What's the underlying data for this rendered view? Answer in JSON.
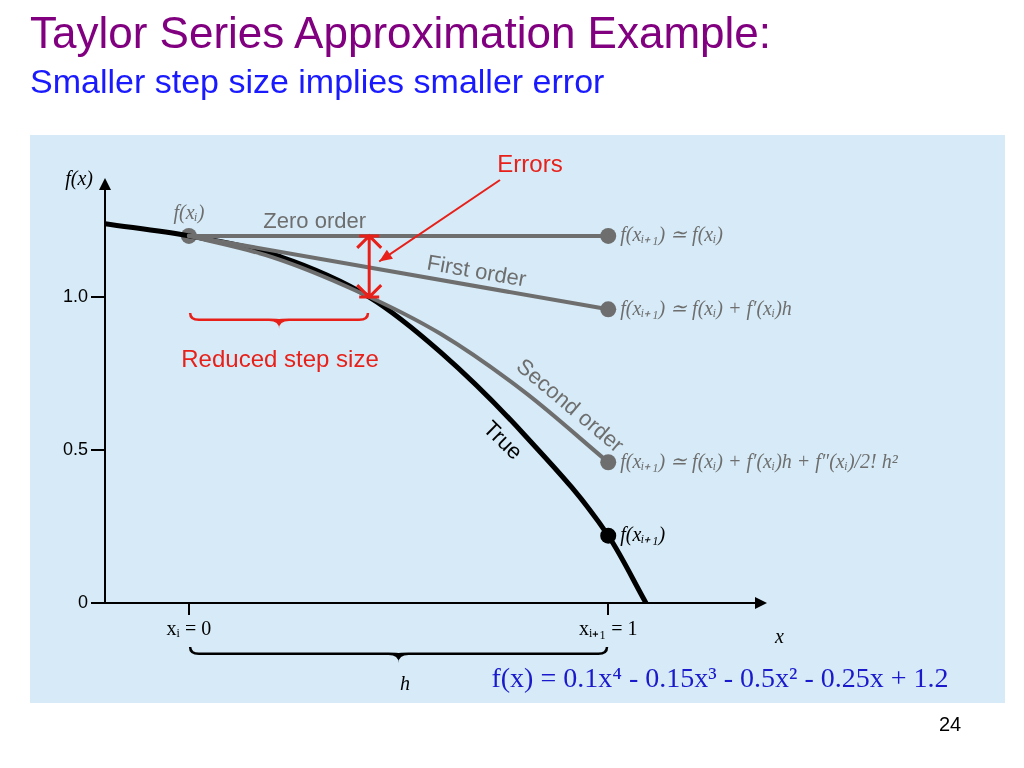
{
  "chart_data": {
    "type": "line",
    "title": "Taylor Series Approximation Example:",
    "subtitle": "Smaller step size implies smaller error",
    "xlabel": "x",
    "ylabel": "f(x)",
    "xlim": [
      -0.2,
      1.35
    ],
    "ylim": [
      0,
      1.35
    ],
    "xticks": [
      {
        "value": 0,
        "label": "xᵢ = 0"
      },
      {
        "value": 1,
        "label": "xᵢ₊₁ = 1"
      }
    ],
    "yticks": [
      0,
      {
        "value": 0.5,
        "label": "0.5"
      },
      {
        "value": 1,
        "label": "1.0"
      }
    ],
    "grid": false,
    "legend": false,
    "series": [
      {
        "type": "line",
        "name": "Zero order",
        "color": "#6e6e6e",
        "marker": "none",
        "x": [
          0,
          1
        ],
        "values": [
          1.2,
          1.2
        ]
      },
      {
        "type": "line",
        "name": "First order",
        "color": "#6e6e6e",
        "marker": "none",
        "x": [
          0,
          1
        ],
        "values": [
          1.2,
          0.96
        ]
      },
      {
        "type": "line",
        "name": "Second order",
        "color": "#6e6e6e",
        "marker": "none",
        "x": [
          0,
          0.2,
          0.4,
          0.6,
          0.8,
          1
        ],
        "values": [
          1.2,
          1.13,
          1.02,
          0.88,
          0.69,
          0.46
        ]
      },
      {
        "type": "line",
        "name": "True",
        "color": "#000000",
        "marker": "none",
        "x": [
          -0.2,
          0,
          0.2,
          0.43,
          0.6,
          0.8,
          1,
          1.09
        ],
        "values": [
          1.24,
          1.2,
          1.14,
          1.0,
          0.82,
          0.55,
          0.22,
          0
        ]
      },
      {
        "type": "scatter",
        "name": "f(xᵢ)",
        "color": "#6e6e6e",
        "marker": "circle",
        "x": [
          0
        ],
        "values": [
          1.2
        ]
      },
      {
        "type": "scatter",
        "name": "f(xᵢ₊₁) ≃ f(xᵢ)",
        "color": "#6e6e6e",
        "marker": "circle",
        "x": [
          1
        ],
        "values": [
          1.2
        ]
      },
      {
        "type": "scatter",
        "name": "f(xᵢ₊₁) ≃ f(xᵢ) + f′(xᵢ)h",
        "color": "#6e6e6e",
        "marker": "circle",
        "x": [
          1
        ],
        "values": [
          0.96
        ]
      },
      {
        "type": "scatter",
        "name": "f(xᵢ₊₁) ≃ f(xᵢ) + f′(xᵢ)h + f″(xᵢ)/2! h²",
        "color": "#6e6e6e",
        "marker": "circle",
        "x": [
          1
        ],
        "values": [
          0.46
        ]
      },
      {
        "type": "scatter",
        "name": "f(xᵢ₊₁)",
        "color": "#000000",
        "marker": "circle",
        "x": [
          1
        ],
        "values": [
          0.22
        ]
      }
    ],
    "annotations": [
      "Errors",
      "Reduced step size",
      "h",
      "f(x) = 0.1x⁴ - 0.15x³ - 0.5x² - 0.25x + 1.2",
      "24"
    ]
  }
}
